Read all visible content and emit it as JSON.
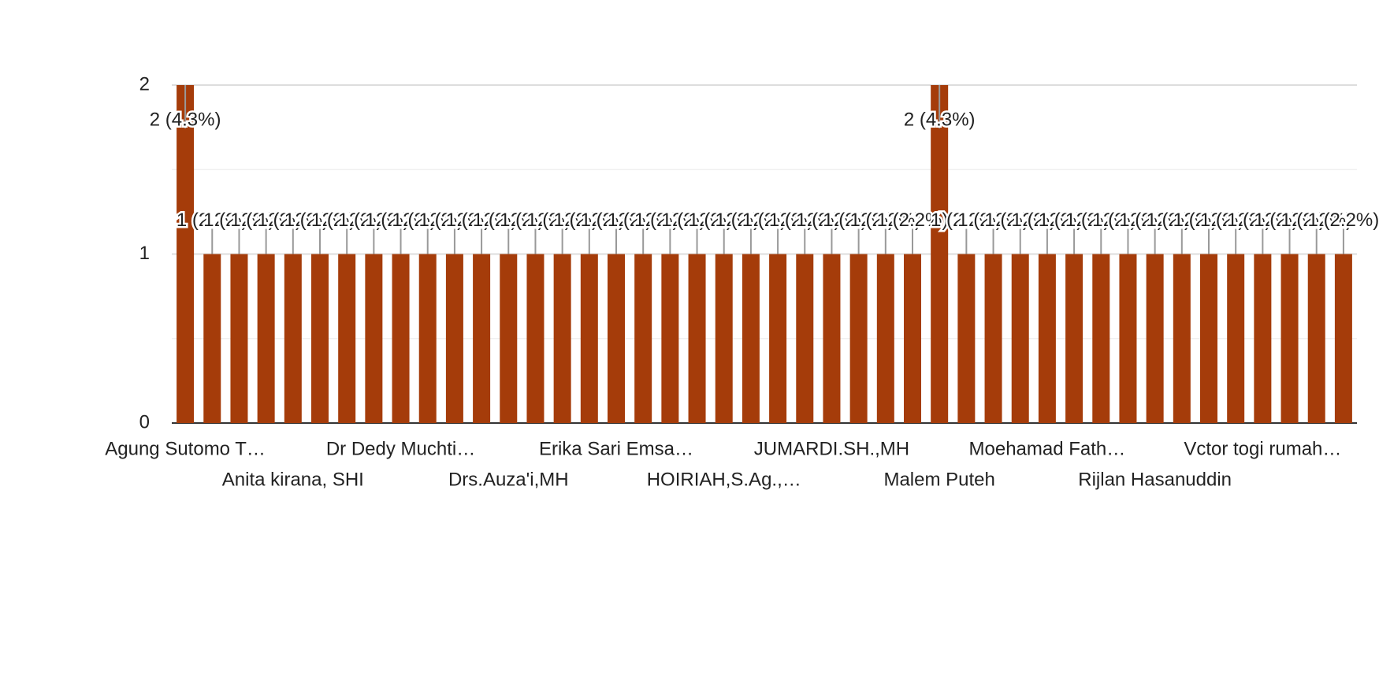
{
  "chart_data": {
    "type": "bar",
    "categories": [
      "Agung Sutomo T…",
      null,
      null,
      null,
      "Anita kirana, SHI",
      null,
      null,
      null,
      "Dr Dedy Muchti…",
      null,
      null,
      null,
      "Drs.Auza'i,MH",
      null,
      null,
      null,
      "Erika Sari Emsa…",
      null,
      null,
      null,
      "HOIRIAH,S.Ag.,…",
      null,
      null,
      null,
      "JUMARDI.SH.,MH",
      null,
      null,
      null,
      "Malem Puteh",
      null,
      null,
      null,
      "Moehamad Fath…",
      null,
      null,
      null,
      "Rijlan Hasanuddin",
      null,
      null,
      null,
      "Vctor togi rumah…",
      null,
      null,
      null
    ],
    "values": [
      2,
      1,
      1,
      1,
      1,
      1,
      1,
      1,
      1,
      1,
      1,
      1,
      1,
      1,
      1,
      1,
      1,
      1,
      1,
      1,
      1,
      1,
      1,
      1,
      1,
      1,
      1,
      1,
      2,
      1,
      1,
      1,
      1,
      1,
      1,
      1,
      1,
      1,
      1,
      1,
      1,
      1,
      1,
      1
    ],
    "value_labels": [
      "2 (4.3%)",
      "1 (2.2%)",
      "1 (2.2%)",
      "1 (2.2%)",
      "1 (2.2%)",
      "1 (2.2%)",
      "1 (2.2%)",
      "1 (2.2%)",
      "1 (2.2%)",
      "1 (2.2%)",
      "1 (2.2%)",
      "1 (2.2%)",
      "1 (2.2%)",
      "1 (2.2%)",
      "1 (2.2%)",
      "1 (2.2%)",
      "1 (2.2%)",
      "1 (2.2%)",
      "1 (2.2%)",
      "1 (2.2%)",
      "1 (2.2%)",
      "1 (2.2%)",
      "1 (2.2%)",
      "1 (2.2%)",
      "1 (2.2%)",
      "1 (2.2%)",
      "1 (2.2%)",
      "1 (2.2%)",
      "2 (4.3%)",
      "1 (2.2%)",
      "1 (2.2%)",
      "1 (2.2%)",
      "1 (2.2%)",
      "1 (2.2%)",
      "1 (2.2%)",
      "1 (2.2%)",
      "1 (2.2%)",
      "1 (2.2%)",
      "1 (2.2%)",
      "1 (2.2%)",
      "1 (2.2%)",
      "1 (2.2%)",
      "1 (2.2%)",
      "1 (2.2%)"
    ],
    "color": "#a53c0a",
    "ylim": [
      0,
      2
    ],
    "yticks": [
      0,
      1,
      2
    ],
    "grid": true
  }
}
